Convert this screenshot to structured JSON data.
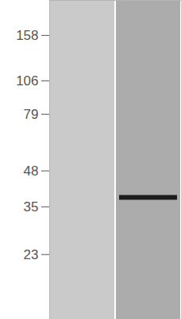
{
  "chart_data": {
    "type": "blot",
    "categories": [
      null,
      null
    ],
    "values": [
      null,
      38
    ],
    "colors": [
      "#cacaca",
      "#acacac"
    ],
    "color": "#1c1c1c",
    "ylim": [
      13,
      215
    ],
    "yticks": [
      158,
      106,
      79,
      48,
      35,
      23
    ],
    "log": "y",
    "tick_labels": "y"
  }
}
